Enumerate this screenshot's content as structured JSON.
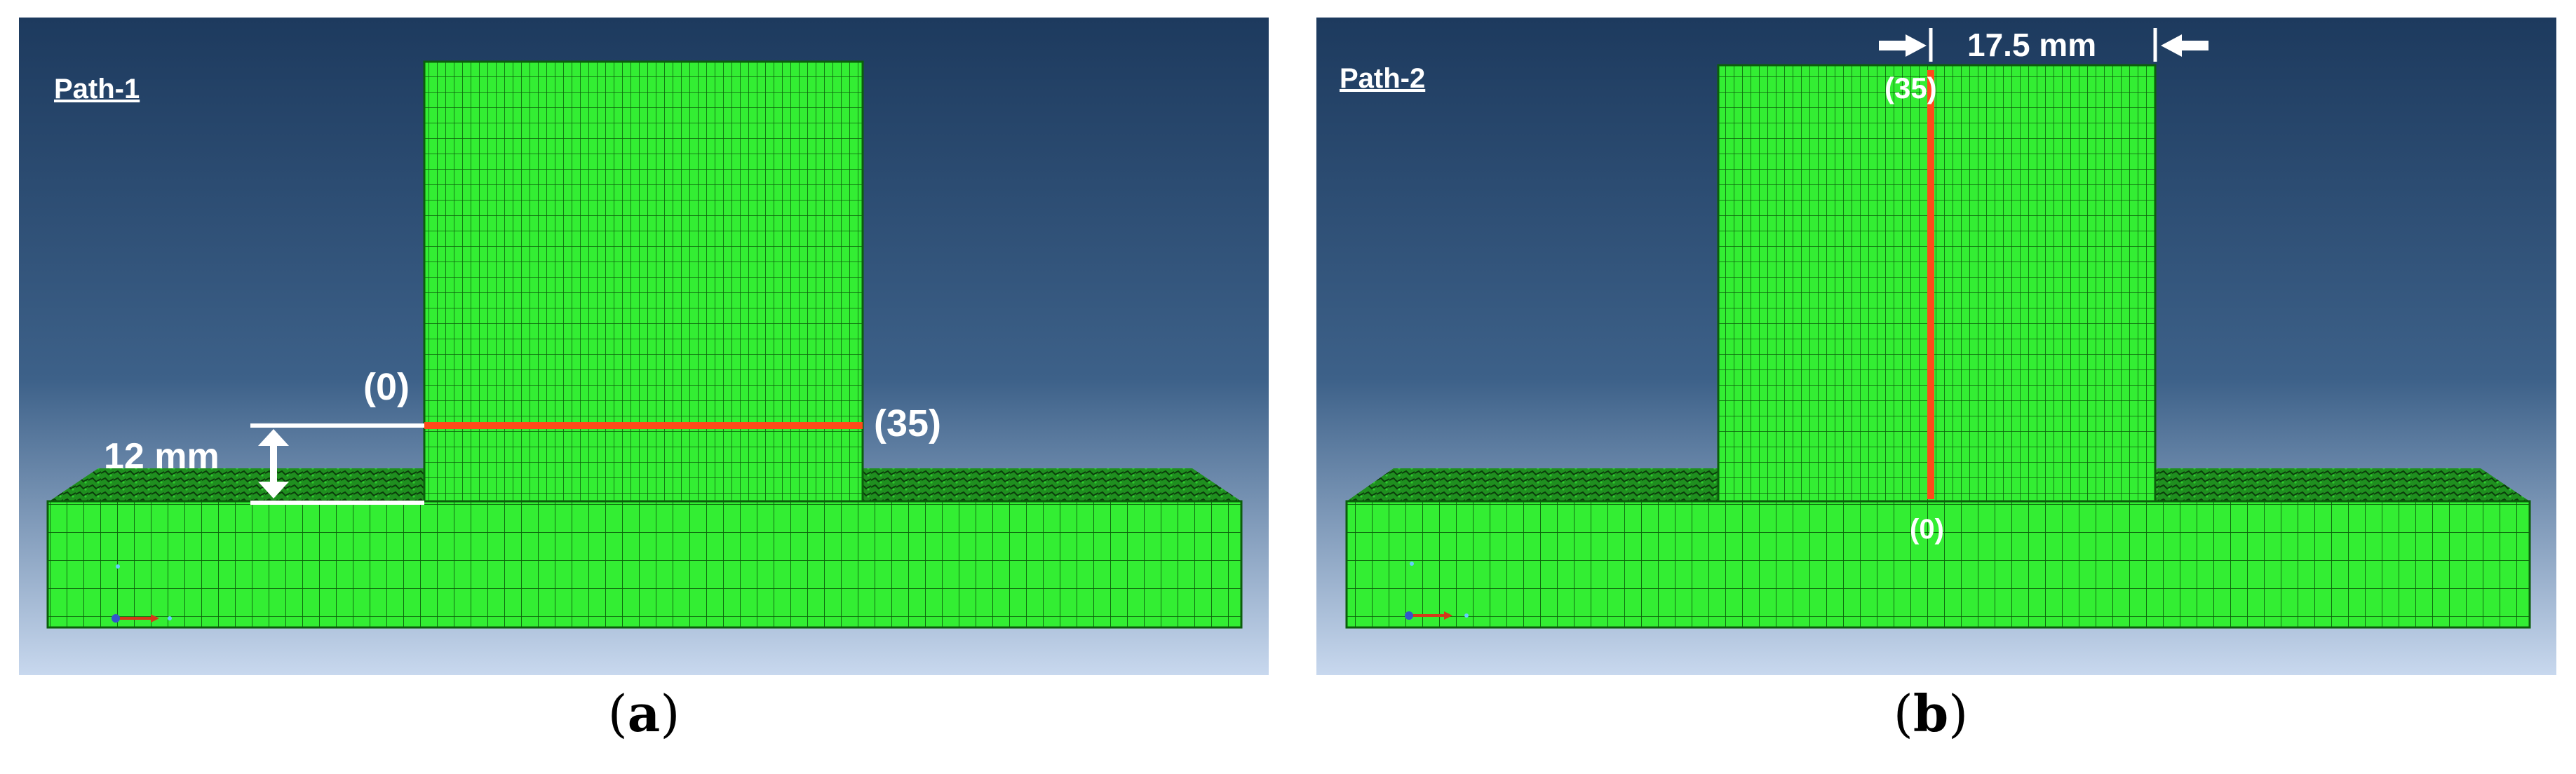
{
  "panels": [
    {
      "path_title": "Path-1",
      "label_start": "(0)",
      "label_end": "(35)",
      "dimension_label": "12 mm",
      "caption_open": "(",
      "caption_letter": "a",
      "caption_close": ")"
    },
    {
      "path_title": "Path-2",
      "label_start": "(0)",
      "label_end": "(35)",
      "dimension_label": "17.5 mm",
      "caption_open": "(",
      "caption_letter": "b",
      "caption_close": ")"
    }
  ],
  "colors": {
    "mesh_green": "#33ee33",
    "mesh_line": "#0b5e0b",
    "path_orange": "#ff4a1a",
    "background_top": "#1d3a5e",
    "background_bottom": "#c8d8ee",
    "annotation_white": "#ffffff"
  }
}
